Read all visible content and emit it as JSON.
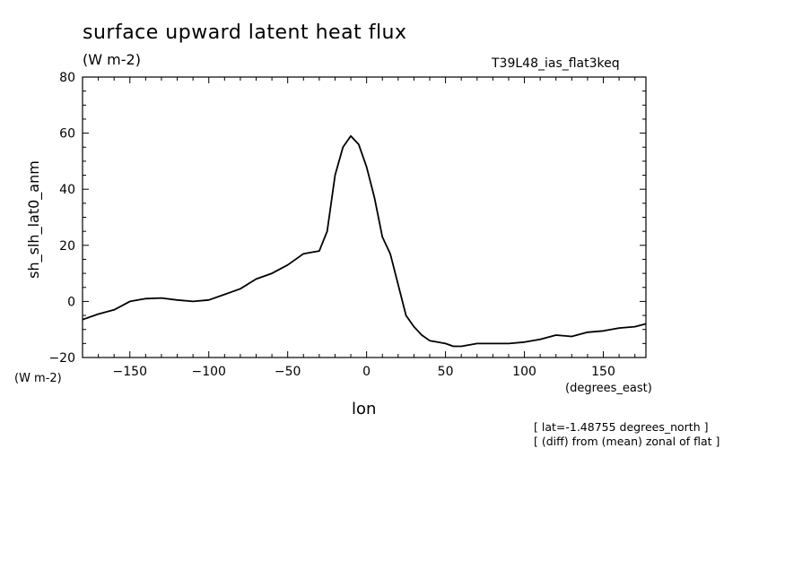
{
  "chart_data": {
    "type": "line",
    "title": "surface upward latent heat flux",
    "units": "(W m-2)",
    "run_label": "T39L48_ias_flat3keq",
    "ylabel": "sh_slh_lat0_anm",
    "y_units": "(W m-2)",
    "xlabel": "lon",
    "x_units": "(degrees_east)",
    "annotations": [
      "[ lat=-1.48755 degrees_north ]",
      "[ (diff) from (mean) zonal of flat ]"
    ],
    "xlim": [
      -180,
      177
    ],
    "ylim": [
      -20,
      80
    ],
    "x_ticks": [
      -150,
      -100,
      -50,
      0,
      50,
      100,
      150
    ],
    "x_tick_labels": [
      "−150",
      "−100",
      "−50",
      "0",
      "50",
      "100",
      "150"
    ],
    "y_ticks": [
      -20,
      0,
      20,
      40,
      60,
      80
    ],
    "y_tick_labels": [
      "−20",
      "0",
      "20",
      "40",
      "60",
      "80"
    ],
    "grid": false,
    "line_color": "#000000",
    "series": [
      {
        "x": [
          -180,
          -170,
          -160,
          -150,
          -140,
          -130,
          -120,
          -110,
          -100,
          -90,
          -80,
          -70,
          -60,
          -50,
          -40,
          -35,
          -30,
          -25,
          -20,
          -15,
          -10,
          -5,
          0,
          5,
          10,
          15,
          20,
          25,
          30,
          35,
          40,
          45,
          50,
          55,
          60,
          70,
          80,
          90,
          100,
          105,
          110,
          120,
          130,
          140,
          150,
          160,
          170,
          177
        ],
        "y": [
          -6.5,
          -4.5,
          -3,
          0,
          1,
          1.2,
          0.5,
          0,
          0.5,
          2.5,
          4.5,
          8,
          10,
          13,
          17,
          17.5,
          18,
          25,
          45,
          55,
          59,
          56,
          48,
          37,
          23,
          17,
          6,
          -5,
          -9,
          -12,
          -14,
          -14.5,
          -15,
          -16,
          -16,
          -15,
          -15,
          -15,
          -14.5,
          -14,
          -13.5,
          -12,
          -12.5,
          -11,
          -10.5,
          -9.5,
          -9,
          -8
        ]
      }
    ]
  }
}
